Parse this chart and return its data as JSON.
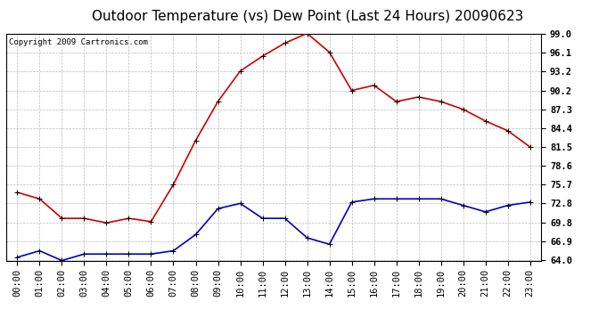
{
  "title": "Outdoor Temperature (vs) Dew Point (Last 24 Hours) 20090623",
  "copyright": "Copyright 2009 Cartronics.com",
  "hours": [
    "00:00",
    "01:00",
    "02:00",
    "03:00",
    "04:00",
    "05:00",
    "06:00",
    "07:00",
    "08:00",
    "09:00",
    "10:00",
    "11:00",
    "12:00",
    "13:00",
    "14:00",
    "15:00",
    "16:00",
    "17:00",
    "18:00",
    "19:00",
    "20:00",
    "21:00",
    "22:00",
    "23:00"
  ],
  "temp": [
    74.5,
    73.5,
    70.5,
    70.5,
    69.8,
    70.5,
    70.0,
    75.7,
    82.5,
    88.5,
    93.2,
    95.5,
    97.5,
    99.0,
    96.1,
    90.2,
    91.0,
    88.5,
    89.2,
    88.5,
    87.3,
    85.5,
    84.0,
    81.5
  ],
  "dewpoint": [
    64.5,
    65.5,
    64.0,
    65.0,
    65.0,
    65.0,
    65.0,
    65.5,
    68.0,
    72.0,
    72.8,
    70.5,
    70.5,
    67.5,
    66.5,
    73.0,
    73.5,
    73.5,
    73.5,
    73.5,
    72.5,
    71.5,
    72.5,
    73.0
  ],
  "temp_color": "#cc0000",
  "dew_color": "#0000cc",
  "marker": "+",
  "markersize": 5,
  "linewidth": 1.2,
  "bg_color": "#ffffff",
  "grid_color": "#bbbbbb",
  "ylim_min": 64.0,
  "ylim_max": 99.0,
  "yticks": [
    64.0,
    66.9,
    69.8,
    72.8,
    75.7,
    78.6,
    81.5,
    84.4,
    87.3,
    90.2,
    93.2,
    96.1,
    99.0
  ],
  "title_fontsize": 11,
  "tick_fontsize": 7.5,
  "copyright_fontsize": 6.5
}
